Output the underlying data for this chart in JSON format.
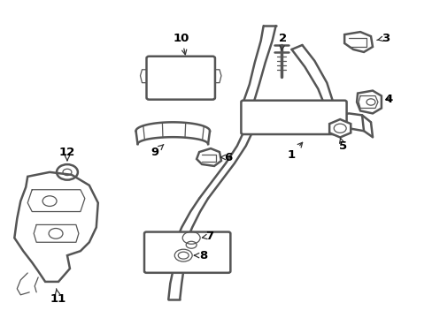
{
  "background_color": "#ffffff",
  "line_color": "#555555",
  "figsize": [
    4.89,
    3.6
  ],
  "dpi": 100,
  "parts": {
    "pipe_color": "#555555",
    "lw_pipe": 1.8,
    "lw_thin": 0.9
  }
}
